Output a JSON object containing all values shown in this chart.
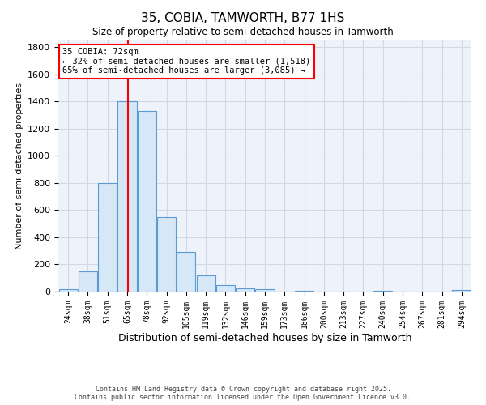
{
  "title": "35, COBIA, TAMWORTH, B77 1HS",
  "subtitle": "Size of property relative to semi-detached houses in Tamworth",
  "xlabel": "Distribution of semi-detached houses by size in Tamworth",
  "ylabel": "Number of semi-detached properties",
  "categories": [
    "24sqm",
    "38sqm",
    "51sqm",
    "65sqm",
    "78sqm",
    "92sqm",
    "105sqm",
    "119sqm",
    "132sqm",
    "146sqm",
    "159sqm",
    "173sqm",
    "186sqm",
    "200sqm",
    "213sqm",
    "227sqm",
    "240sqm",
    "254sqm",
    "267sqm",
    "281sqm",
    "294sqm"
  ],
  "values": [
    20,
    150,
    800,
    1400,
    1330,
    550,
    295,
    120,
    50,
    25,
    20,
    0,
    5,
    0,
    0,
    0,
    5,
    0,
    0,
    0,
    10
  ],
  "bar_color_fill": "#d6e8f7",
  "bar_color_edge": "#5b9bd5",
  "vline_color": "red",
  "annotation_title": "35 COBIA: 72sqm",
  "annotation_line1": "← 32% of semi-detached houses are smaller (1,518)",
  "annotation_line2": "65% of semi-detached houses are larger (3,085) →",
  "annotation_box_color": "white",
  "annotation_box_edge": "red",
  "ylim": [
    0,
    1850
  ],
  "yticks": [
    0,
    200,
    400,
    600,
    800,
    1000,
    1200,
    1400,
    1600,
    1800
  ],
  "grid_color": "#d0d8e8",
  "background_color": "#eef2fb",
  "footer_line1": "Contains HM Land Registry data © Crown copyright and database right 2025.",
  "footer_line2": "Contains public sector information licensed under the Open Government Licence v3.0."
}
